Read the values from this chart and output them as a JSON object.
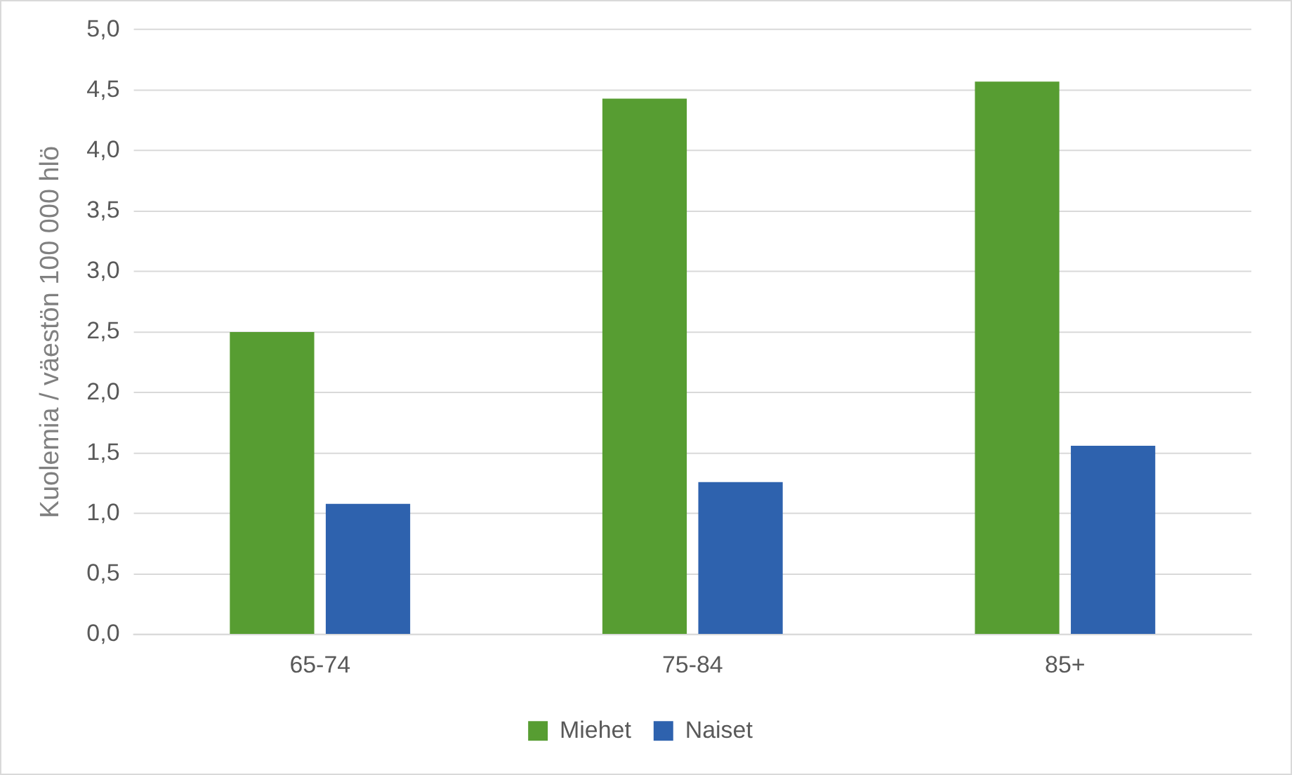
{
  "chart_data": {
    "type": "bar",
    "ylabel": "Kuolemia / väestön 100 000 hlö",
    "categories": [
      "65-74",
      "75-84",
      "85+"
    ],
    "series": [
      {
        "name": "Miehet",
        "color": "#579d32",
        "values": [
          2.5,
          4.43,
          4.57
        ]
      },
      {
        "name": "Naiset",
        "color": "#2e62ae",
        "values": [
          1.08,
          1.26,
          1.56
        ]
      }
    ],
    "ylim": [
      0,
      5
    ],
    "yticks": [
      {
        "value": 0,
        "label": "0,0"
      },
      {
        "value": 0.5,
        "label": "0,5"
      },
      {
        "value": 1,
        "label": "1,0"
      },
      {
        "value": 1.5,
        "label": "1,5"
      },
      {
        "value": 2,
        "label": "2,0"
      },
      {
        "value": 2.5,
        "label": "2,5"
      },
      {
        "value": 3,
        "label": "3,0"
      },
      {
        "value": 3.5,
        "label": "3,5"
      },
      {
        "value": 4,
        "label": "4,0"
      },
      {
        "value": 4.5,
        "label": "4,5"
      },
      {
        "value": 5,
        "label": "5,0"
      }
    ],
    "grid": "y",
    "legend": "bottom"
  }
}
